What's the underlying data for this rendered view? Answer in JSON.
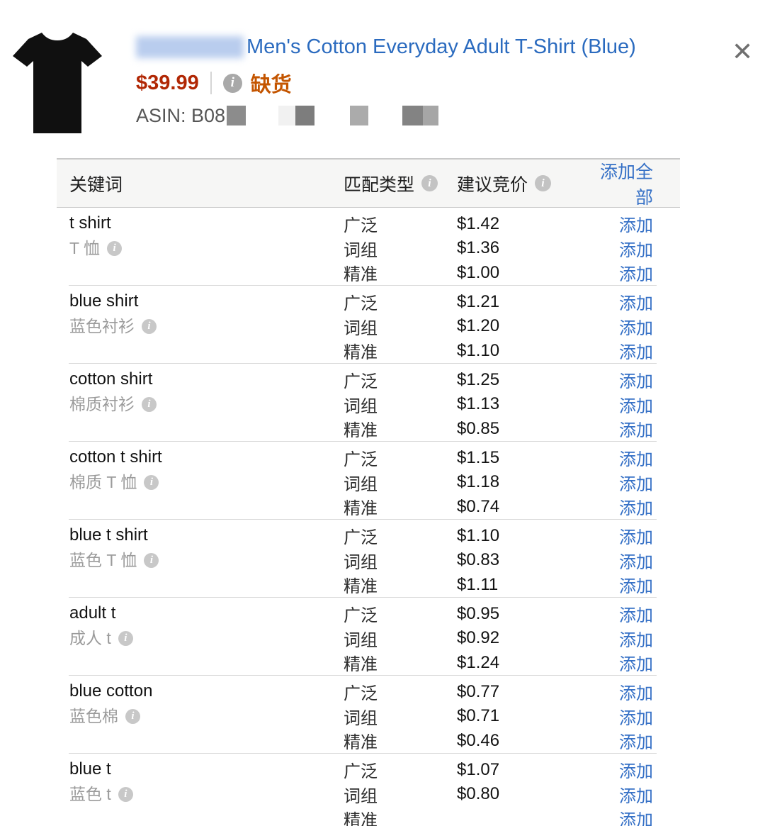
{
  "header": {
    "title": "Men's Cotton Everyday Adult T-Shirt (Blue)",
    "price": "$39.99",
    "stock_status": "缺货",
    "asin_label": "ASIN: B08"
  },
  "icons": {
    "info": "i",
    "close": "✕",
    "product_image": "black-tshirt"
  },
  "colors": {
    "title_blue": "#2b6bbf",
    "price_red": "#b12704",
    "stock_orange": "#c45500",
    "link_blue": "#3570c6",
    "header_bg": "#f6f6f5"
  },
  "table": {
    "columns": {
      "keyword": "关键词",
      "match_type": "匹配类型",
      "suggested_bid": "建议竞价",
      "add_all": "添加全部"
    },
    "add_label": "添加",
    "rows": [
      {
        "keyword": "t shirt",
        "translation": "T 恤",
        "matches": [
          {
            "type": "广泛",
            "bid": "$1.42"
          },
          {
            "type": "词组",
            "bid": "$1.36"
          },
          {
            "type": "精准",
            "bid": "$1.00"
          }
        ]
      },
      {
        "keyword": "blue shirt",
        "translation": "蓝色衬衫",
        "matches": [
          {
            "type": "广泛",
            "bid": "$1.21"
          },
          {
            "type": "词组",
            "bid": "$1.20"
          },
          {
            "type": "精准",
            "bid": "$1.10"
          }
        ]
      },
      {
        "keyword": "cotton shirt",
        "translation": "棉质衬衫",
        "matches": [
          {
            "type": "广泛",
            "bid": "$1.25"
          },
          {
            "type": "词组",
            "bid": "$1.13"
          },
          {
            "type": "精准",
            "bid": "$0.85"
          }
        ]
      },
      {
        "keyword": "cotton t shirt",
        "translation": "棉质 T 恤",
        "matches": [
          {
            "type": "广泛",
            "bid": "$1.15"
          },
          {
            "type": "词组",
            "bid": "$1.18"
          },
          {
            "type": "精准",
            "bid": "$0.74"
          }
        ]
      },
      {
        "keyword": "blue t shirt",
        "translation": "蓝色 T 恤",
        "matches": [
          {
            "type": "广泛",
            "bid": "$1.10"
          },
          {
            "type": "词组",
            "bid": "$0.83"
          },
          {
            "type": "精准",
            "bid": "$1.11"
          }
        ]
      },
      {
        "keyword": "adult t",
        "translation": "成人 t",
        "matches": [
          {
            "type": "广泛",
            "bid": "$0.95"
          },
          {
            "type": "词组",
            "bid": "$0.92"
          },
          {
            "type": "精准",
            "bid": "$1.24"
          }
        ]
      },
      {
        "keyword": "blue cotton",
        "translation": "蓝色棉",
        "matches": [
          {
            "type": "广泛",
            "bid": "$0.77"
          },
          {
            "type": "词组",
            "bid": "$0.71"
          },
          {
            "type": "精准",
            "bid": "$0.46"
          }
        ]
      },
      {
        "keyword": "blue t",
        "translation": "蓝色 t",
        "matches": [
          {
            "type": "广泛",
            "bid": "$1.07"
          },
          {
            "type": "词组",
            "bid": "$0.80"
          },
          {
            "type": "精准",
            "bid": ""
          }
        ]
      }
    ]
  }
}
